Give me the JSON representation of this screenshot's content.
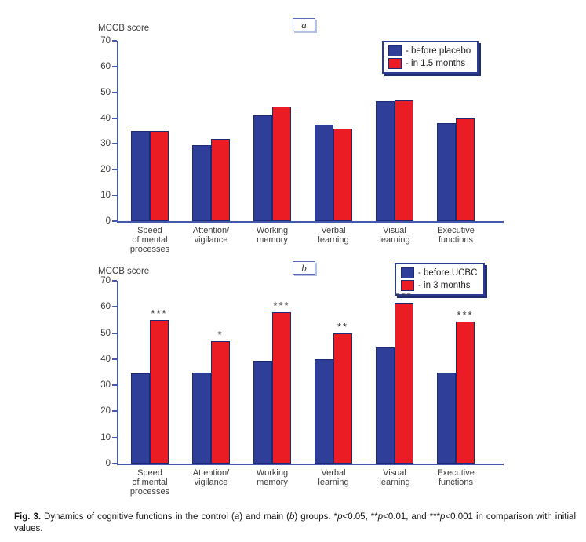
{
  "page": {
    "background": "#ffffff"
  },
  "colors": {
    "bar_blue": "#2e3e99",
    "bar_red": "#ec1c24",
    "bar_border": "#1c2a75",
    "axis_blue": "#4459ad",
    "legend_border": "#2b3c94",
    "legend_shadow": "#1f2c70",
    "panel_box_border": "#5a6cb8",
    "label_text": "#3b3b3b"
  },
  "chart_data": [
    {
      "type": "bar",
      "panel_label": "a",
      "axis_label": "MCCB score",
      "ylim": [
        0,
        70
      ],
      "ytick_step": 10,
      "grid": false,
      "legend_position": "top-right",
      "categories": [
        [
          "Speed",
          "of mental",
          "processes"
        ],
        [
          "Attention/",
          "vigilance"
        ],
        [
          "Working",
          "memory"
        ],
        [
          "Verbal",
          "learning"
        ],
        [
          "Visual",
          "learning"
        ],
        [
          "Executive",
          "functions"
        ]
      ],
      "series": [
        {
          "name": "- before placebo",
          "color": "#2e3e99",
          "values": [
            35,
            29.5,
            41,
            37.5,
            46.5,
            38
          ]
        },
        {
          "name": "- in 1.5 months",
          "color": "#ec1c24",
          "values": [
            35,
            32,
            44.5,
            36,
            47,
            40
          ]
        }
      ],
      "significance": [
        "",
        "",
        "",
        "",
        "",
        ""
      ]
    },
    {
      "type": "bar",
      "panel_label": "b",
      "axis_label": "MCCB score",
      "ylim": [
        0,
        70
      ],
      "ytick_step": 10,
      "grid": false,
      "legend_position": "top-right",
      "categories": [
        [
          "Speed",
          "of mental",
          "processes"
        ],
        [
          "Attention/",
          "vigilance"
        ],
        [
          "Working",
          "memory"
        ],
        [
          "Verbal",
          "learning"
        ],
        [
          "Visual",
          "learning"
        ],
        [
          "Executive",
          "functions"
        ]
      ],
      "series": [
        {
          "name": "- before UCBC",
          "color": "#2e3e99",
          "values": [
            34.5,
            35,
            39.5,
            40,
            44.5,
            35
          ]
        },
        {
          "name": "- in 3 months",
          "color": "#ec1c24",
          "values": [
            55,
            47,
            58,
            50,
            61.5,
            54.5
          ]
        }
      ],
      "significance": [
        "***",
        "*",
        "***",
        "**",
        "***",
        "***"
      ]
    }
  ],
  "caption": {
    "fig_label": "Fig. 3.",
    "segments": [
      {
        "t": " Dynamics of cognitive functions in the control ("
      },
      {
        "t": "a",
        "i": true
      },
      {
        "t": ") and main ("
      },
      {
        "t": "b",
        "i": true
      },
      {
        "t": ") groups. *"
      },
      {
        "t": "p",
        "i": true
      },
      {
        "t": "<0.05, **"
      },
      {
        "t": "p",
        "i": true
      },
      {
        "t": "<0.01, and ***"
      },
      {
        "t": "p",
        "i": true
      },
      {
        "t": "<0.001 in comparison with initial values."
      }
    ]
  }
}
